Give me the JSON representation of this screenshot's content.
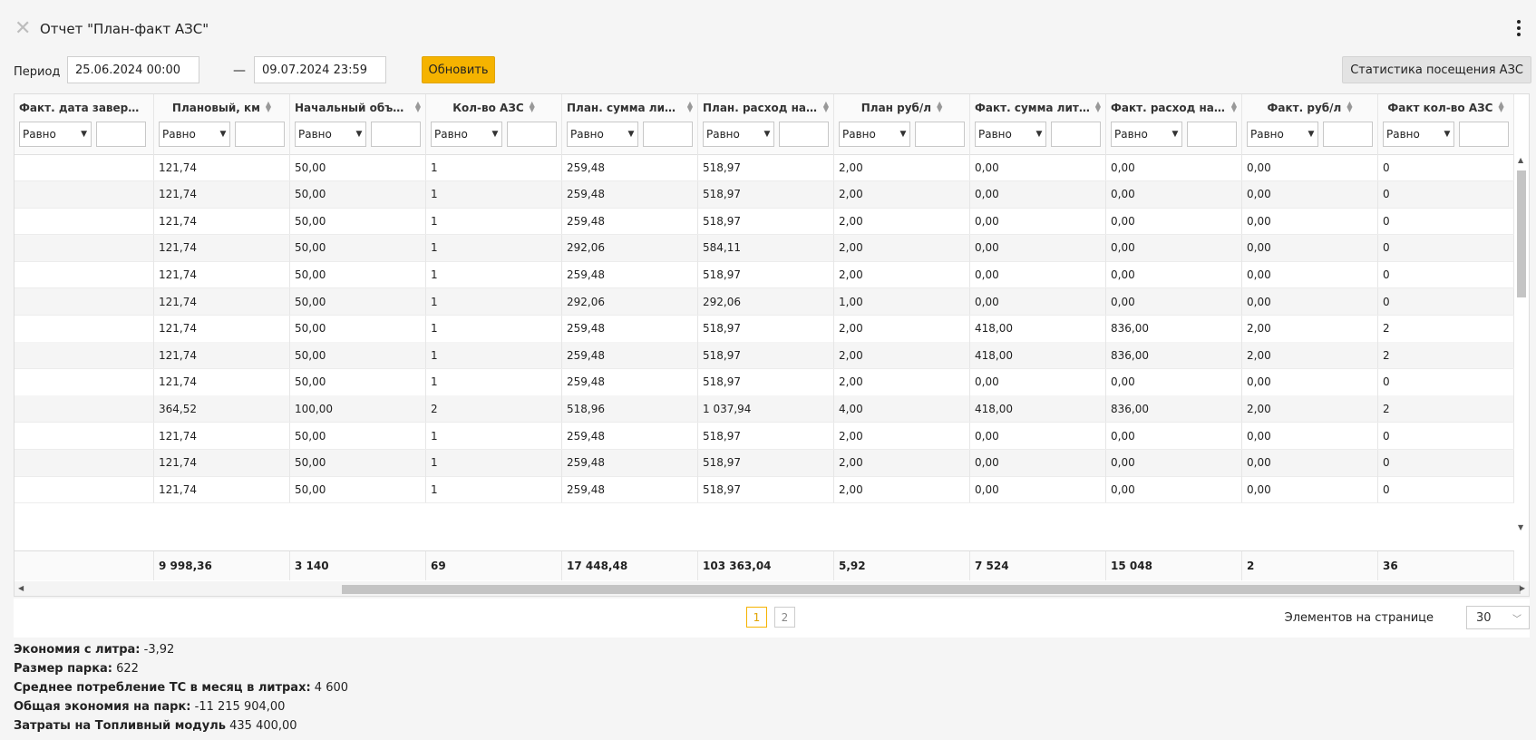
{
  "title": "Отчет \"План-факт АЗС\"",
  "period": {
    "label": "Период",
    "from": "25.06.2024 00:00",
    "dash": "—",
    "to": "09.07.2024 23:59",
    "refresh_label": "Обновить",
    "stats_label": "Статистика посещения АЗС"
  },
  "filter_default": "Равно",
  "columns": [
    {
      "label": "Факт. дата завершен...",
      "width": 154
    },
    {
      "label": "Плановый, км",
      "width": 150
    },
    {
      "label": "Начальный объем, л",
      "width": 150
    },
    {
      "label": "Кол-во АЗС",
      "width": 150
    },
    {
      "label": "План. сумма литров, л",
      "width": 150
    },
    {
      "label": "План. расход на топл...",
      "width": 150
    },
    {
      "label": "План руб/л",
      "width": 150
    },
    {
      "label": "Факт. сумма литров, л",
      "width": 150
    },
    {
      "label": "Факт. расход на топл...",
      "width": 150
    },
    {
      "label": "Факт. руб/л",
      "width": 150
    },
    {
      "label": "Факт кол-во АЗС",
      "width": 150
    }
  ],
  "rows": [
    [
      "",
      "121,74",
      "50,00",
      "1",
      "259,48",
      "518,97",
      "2,00",
      "0,00",
      "0,00",
      "0,00",
      "0"
    ],
    [
      "",
      "121,74",
      "50,00",
      "1",
      "259,48",
      "518,97",
      "2,00",
      "0,00",
      "0,00",
      "0,00",
      "0"
    ],
    [
      "",
      "121,74",
      "50,00",
      "1",
      "259,48",
      "518,97",
      "2,00",
      "0,00",
      "0,00",
      "0,00",
      "0"
    ],
    [
      "",
      "121,74",
      "50,00",
      "1",
      "292,06",
      "584,11",
      "2,00",
      "0,00",
      "0,00",
      "0,00",
      "0"
    ],
    [
      "",
      "121,74",
      "50,00",
      "1",
      "259,48",
      "518,97",
      "2,00",
      "0,00",
      "0,00",
      "0,00",
      "0"
    ],
    [
      "",
      "121,74",
      "50,00",
      "1",
      "292,06",
      "292,06",
      "1,00",
      "0,00",
      "0,00",
      "0,00",
      "0"
    ],
    [
      "",
      "121,74",
      "50,00",
      "1",
      "259,48",
      "518,97",
      "2,00",
      "418,00",
      "836,00",
      "2,00",
      "2"
    ],
    [
      "",
      "121,74",
      "50,00",
      "1",
      "259,48",
      "518,97",
      "2,00",
      "418,00",
      "836,00",
      "2,00",
      "2"
    ],
    [
      "",
      "121,74",
      "50,00",
      "1",
      "259,48",
      "518,97",
      "2,00",
      "0,00",
      "0,00",
      "0,00",
      "0"
    ],
    [
      "",
      "364,52",
      "100,00",
      "2",
      "518,96",
      "1 037,94",
      "4,00",
      "418,00",
      "836,00",
      "2,00",
      "2"
    ],
    [
      "",
      "121,74",
      "50,00",
      "1",
      "259,48",
      "518,97",
      "2,00",
      "0,00",
      "0,00",
      "0,00",
      "0"
    ],
    [
      "",
      "121,74",
      "50,00",
      "1",
      "259,48",
      "518,97",
      "2,00",
      "0,00",
      "0,00",
      "0,00",
      "0"
    ],
    [
      "",
      "121,74",
      "50,00",
      "1",
      "259,48",
      "518,97",
      "2,00",
      "0,00",
      "0,00",
      "0,00",
      "0"
    ]
  ],
  "totals": [
    "",
    "9 998,36",
    "3 140",
    "69",
    "17 448,48",
    "103 363,04",
    "5,92",
    "7 524",
    "15 048",
    "2",
    "36"
  ],
  "pagination": {
    "pages": [
      "1",
      "2"
    ],
    "active": "1",
    "per_page_label": "Элементов на странице",
    "per_page_value": "30"
  },
  "summary": [
    {
      "label": "Экономия с литра:",
      "value": "-3,92"
    },
    {
      "label": "Размер парка:",
      "value": "622"
    },
    {
      "label": "Среднее потребление ТС в месяц в литрах:",
      "value": "4 600"
    },
    {
      "label": "Общая экономия на парк:",
      "value": "-11 215 904,00"
    },
    {
      "label": "Затраты на Топливный модуль",
      "value": "435 400,00"
    }
  ]
}
